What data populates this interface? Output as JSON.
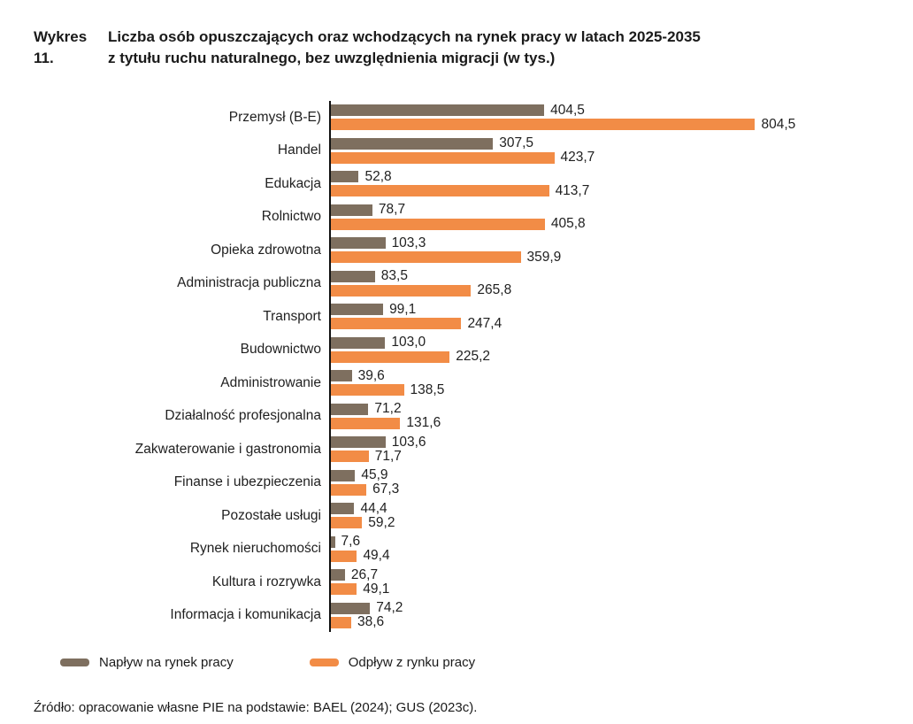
{
  "title": {
    "label": "Wykres 11.",
    "text": "Liczba osób opuszczających oraz wchodzących na rynek pracy w latach 2025-2035\nz tytułu ruchu naturalnego, bez uwzględnienia migracji (w tys.)"
  },
  "chart_data": {
    "type": "bar",
    "orientation": "horizontal",
    "unit": "tys.",
    "value_decimal_separator": ",",
    "data_labels": true,
    "legend_position": "bottom",
    "xlim": [
      0,
      830
    ],
    "grid": false,
    "categories": [
      "Przemysł (B-E)",
      "Handel",
      "Edukacja",
      "Rolnictwo",
      "Opieka zdrowotna",
      "Administracja publiczna",
      "Transport",
      "Budownictwo",
      "Administrowanie",
      "Działalność profesjonalna",
      "Zakwaterowanie i gastronomia",
      "Finanse i ubezpieczenia",
      "Pozostałe usługi",
      "Rynek nieruchomości",
      "Kultura i rozrywka",
      "Informacja i komunikacja"
    ],
    "series": [
      {
        "name": "Napływ na rynek pracy",
        "color": "#7e6f5f",
        "values": [
          404.5,
          307.5,
          52.8,
          78.7,
          103.3,
          83.5,
          99.1,
          103.0,
          39.6,
          71.2,
          103.6,
          45.9,
          44.4,
          7.6,
          26.7,
          74.2
        ]
      },
      {
        "name": "Odpływ z rynku pracy",
        "color": "#f28c46",
        "values": [
          804.5,
          423.7,
          413.7,
          405.8,
          359.9,
          265.8,
          247.4,
          225.2,
          138.5,
          131.6,
          71.7,
          67.3,
          59.2,
          49.4,
          49.1,
          38.6
        ]
      }
    ]
  },
  "legend": {
    "items": [
      {
        "label": "Napływ na rynek pracy",
        "color": "#7e6f5f"
      },
      {
        "label": "Odpływ z rynku pracy",
        "color": "#f28c46"
      }
    ]
  },
  "source": "Źródło: opracowanie własne PIE na podstawie: BAEL (2024); GUS (2023c)."
}
